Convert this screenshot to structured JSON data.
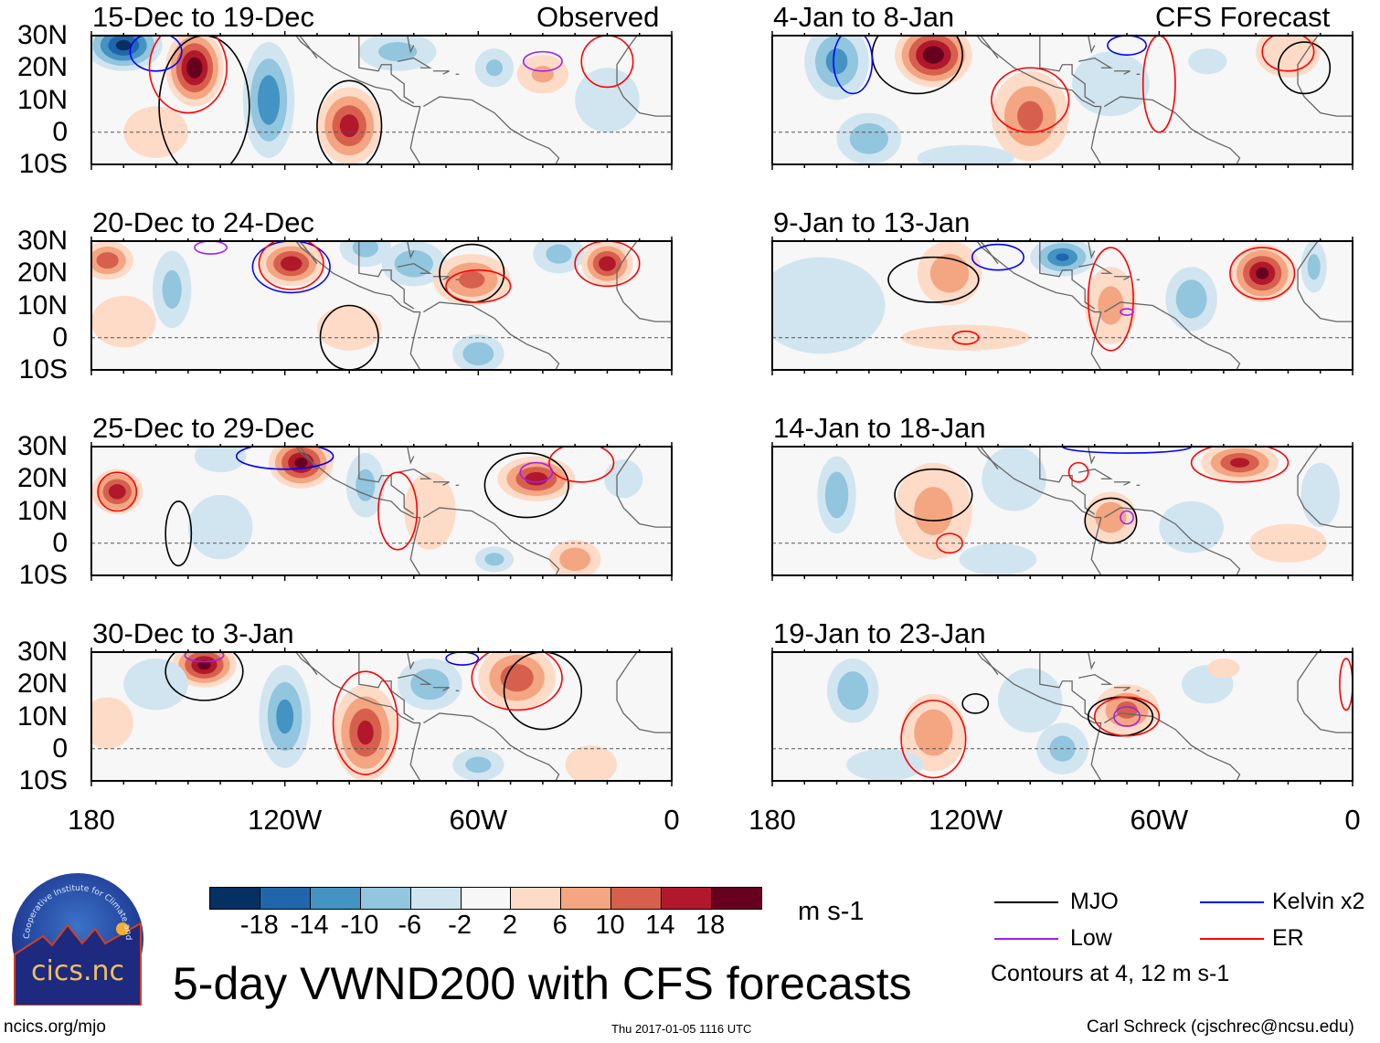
{
  "header": {
    "left_label": "Observed",
    "right_label": "CFS Forecast"
  },
  "axes": {
    "lat_labels": [
      "30N",
      "20N",
      "10N",
      "0",
      "10S"
    ],
    "lat_values": [
      30,
      20,
      10,
      0,
      -10
    ],
    "lon_labels": [
      "180",
      "120W",
      "60W",
      "0"
    ],
    "lon_values": [
      180,
      120,
      60,
      0
    ]
  },
  "chart_data": {
    "type": "heatmap",
    "title": "5-day VWND200 with CFS forecasts",
    "units": "m s-1",
    "field_note": "approximate anomaly features: lon in degrees W, lat in degrees N, extent in degrees, peak value in m s-1",
    "panels": [
      {
        "title": "15-Dec to 19-Dec",
        "column": "left",
        "row": 0,
        "features": [
          [
            170,
            27,
            12,
            8,
            -20
          ],
          [
            148,
            20,
            9,
            12,
            22
          ],
          [
            125,
            10,
            8,
            18,
            -14
          ],
          [
            100,
            2,
            10,
            12,
            17
          ],
          [
            85,
            25,
            12,
            6,
            -8
          ],
          [
            55,
            20,
            6,
            6,
            -7
          ],
          [
            40,
            18,
            8,
            6,
            7
          ],
          [
            160,
            0,
            10,
            8,
            6
          ],
          [
            20,
            10,
            10,
            10,
            -5
          ]
        ],
        "contours": [
          [
            "mjo",
            145,
            8,
            14,
            22
          ],
          [
            "mjo",
            100,
            2,
            10,
            14
          ],
          [
            "kelvin",
            160,
            25,
            8,
            6
          ],
          [
            "er",
            150,
            20,
            12,
            14
          ],
          [
            "er",
            20,
            22,
            8,
            8
          ],
          [
            "low",
            40,
            22,
            6,
            3
          ]
        ]
      },
      {
        "title": "20-Dec to 24-Dec",
        "column": "left",
        "row": 1,
        "features": [
          [
            175,
            24,
            8,
            6,
            14
          ],
          [
            155,
            15,
            6,
            12,
            -8
          ],
          [
            118,
            23,
            10,
            7,
            18
          ],
          [
            95,
            28,
            8,
            6,
            -8
          ],
          [
            80,
            23,
            10,
            7,
            -10
          ],
          [
            62,
            18,
            12,
            8,
            12
          ],
          [
            35,
            26,
            8,
            6,
            -8
          ],
          [
            20,
            23,
            8,
            7,
            18
          ],
          [
            100,
            3,
            10,
            7,
            5
          ],
          [
            60,
            -5,
            8,
            6,
            -10
          ],
          [
            170,
            5,
            10,
            8,
            5
          ]
        ],
        "contours": [
          [
            "mjo",
            62,
            20,
            10,
            9
          ],
          [
            "mjo",
            100,
            0,
            9,
            10
          ],
          [
            "kelvin",
            118,
            22,
            12,
            8
          ],
          [
            "er",
            118,
            23,
            10,
            8
          ],
          [
            "er",
            60,
            16,
            10,
            5
          ],
          [
            "er",
            20,
            23,
            10,
            7
          ],
          [
            "low",
            143,
            28,
            5,
            2
          ]
        ]
      },
      {
        "title": "25-Dec to 29-Dec",
        "column": "left",
        "row": 2,
        "features": [
          [
            172,
            16,
            8,
            7,
            18
          ],
          [
            115,
            25,
            10,
            8,
            20
          ],
          [
            140,
            27,
            8,
            5,
            -6
          ],
          [
            95,
            18,
            6,
            10,
            -8
          ],
          [
            75,
            10,
            8,
            12,
            5
          ],
          [
            42,
            20,
            12,
            7,
            17
          ],
          [
            140,
            5,
            10,
            10,
            -5
          ],
          [
            30,
            -5,
            8,
            6,
            10
          ],
          [
            55,
            -5,
            6,
            4,
            -8
          ],
          [
            15,
            20,
            6,
            6,
            -6
          ]
        ],
        "contours": [
          [
            "mjo",
            45,
            18,
            13,
            10
          ],
          [
            "mjo",
            153,
            3,
            4,
            10
          ],
          [
            "kelvin",
            120,
            27,
            15,
            4
          ],
          [
            "er",
            172,
            16,
            6,
            6
          ],
          [
            "er",
            28,
            25,
            10,
            6
          ],
          [
            "low",
            42,
            22,
            5,
            3
          ],
          [
            "er",
            85,
            10,
            6,
            12
          ]
        ]
      },
      {
        "title": "30-Dec to 3-Jan",
        "column": "left",
        "row": 3,
        "features": [
          [
            145,
            26,
            10,
            7,
            20
          ],
          [
            160,
            20,
            10,
            8,
            -6
          ],
          [
            120,
            10,
            8,
            16,
            -12
          ],
          [
            95,
            5,
            10,
            15,
            16
          ],
          [
            75,
            20,
            10,
            8,
            -10
          ],
          [
            48,
            22,
            12,
            10,
            14
          ],
          [
            60,
            -5,
            8,
            5,
            -8
          ],
          [
            175,
            8,
            8,
            8,
            5
          ],
          [
            25,
            -5,
            8,
            6,
            6
          ]
        ],
        "contours": [
          [
            "mjo",
            145,
            24,
            12,
            9
          ],
          [
            "mjo",
            40,
            18,
            12,
            12
          ],
          [
            "er",
            95,
            8,
            10,
            16
          ],
          [
            "er",
            48,
            22,
            14,
            10
          ],
          [
            "low",
            145,
            29,
            6,
            2
          ],
          [
            "kelvin",
            65,
            28,
            5,
            2
          ]
        ]
      },
      {
        "title": "4-Jan to 8-Jan",
        "column": "right",
        "row": 0,
        "features": [
          [
            160,
            22,
            10,
            12,
            -12
          ],
          [
            130,
            24,
            12,
            10,
            22
          ],
          [
            150,
            -2,
            10,
            8,
            -10
          ],
          [
            100,
            5,
            12,
            14,
            12
          ],
          [
            75,
            15,
            12,
            10,
            -6
          ],
          [
            45,
            22,
            6,
            4,
            -6
          ],
          [
            120,
            -8,
            15,
            4,
            -6
          ],
          [
            20,
            25,
            10,
            8,
            6
          ]
        ],
        "contours": [
          [
            "mjo",
            135,
            24,
            14,
            12
          ],
          [
            "mjo",
            15,
            20,
            8,
            8
          ],
          [
            "kelvin",
            155,
            22,
            6,
            10
          ],
          [
            "kelvin",
            70,
            27,
            6,
            3
          ],
          [
            "er",
            100,
            10,
            12,
            10
          ],
          [
            "er",
            20,
            25,
            8,
            6
          ],
          [
            "er",
            60,
            15,
            5,
            15
          ]
        ]
      },
      {
        "title": "9-Jan to 13-Jan",
        "column": "right",
        "row": 1,
        "features": [
          [
            165,
            10,
            20,
            15,
            -5
          ],
          [
            125,
            20,
            10,
            10,
            10
          ],
          [
            90,
            25,
            10,
            6,
            -15
          ],
          [
            75,
            10,
            8,
            12,
            8
          ],
          [
            50,
            12,
            8,
            10,
            -10
          ],
          [
            28,
            20,
            10,
            9,
            20
          ],
          [
            12,
            22,
            4,
            8,
            -8
          ],
          [
            120,
            0,
            20,
            4,
            4
          ]
        ],
        "contours": [
          [
            "mjo",
            130,
            18,
            14,
            7
          ],
          [
            "er",
            75,
            12,
            7,
            16
          ],
          [
            "er",
            28,
            20,
            10,
            8
          ],
          [
            "er",
            120,
            0,
            4,
            2
          ],
          [
            "kelvin",
            110,
            25,
            8,
            4
          ],
          [
            "low",
            70,
            8,
            2,
            1
          ]
        ]
      },
      {
        "title": "14-Jan to 18-Jan",
        "column": "right",
        "row": 2,
        "features": [
          [
            160,
            15,
            6,
            12,
            -10
          ],
          [
            130,
            10,
            12,
            15,
            8
          ],
          [
            105,
            20,
            10,
            10,
            -6
          ],
          [
            75,
            8,
            8,
            8,
            10
          ],
          [
            35,
            25,
            12,
            6,
            16
          ],
          [
            10,
            15,
            6,
            10,
            -5
          ],
          [
            50,
            5,
            10,
            8,
            -6
          ],
          [
            20,
            0,
            12,
            6,
            5
          ],
          [
            110,
            -5,
            12,
            5,
            -4
          ]
        ],
        "contours": [
          [
            "mjo",
            130,
            15,
            12,
            8
          ],
          [
            "mjo",
            75,
            7,
            8,
            7
          ],
          [
            "er",
            125,
            0,
            4,
            3
          ],
          [
            "er",
            35,
            25,
            15,
            6
          ],
          [
            "er",
            85,
            22,
            3,
            3
          ],
          [
            "kelvin",
            70,
            30,
            20,
            2
          ],
          [
            "low",
            70,
            8,
            2,
            2
          ]
        ]
      },
      {
        "title": "19-Jan to 23-Jan",
        "column": "right",
        "row": 3,
        "features": [
          [
            155,
            18,
            8,
            10,
            -10
          ],
          [
            130,
            5,
            10,
            12,
            10
          ],
          [
            100,
            15,
            10,
            10,
            -6
          ],
          [
            90,
            0,
            8,
            8,
            -8
          ],
          [
            70,
            12,
            10,
            8,
            12
          ],
          [
            45,
            20,
            8,
            6,
            -5
          ],
          [
            40,
            25,
            5,
            3,
            5
          ],
          [
            145,
            -5,
            12,
            5,
            -4
          ]
        ],
        "contours": [
          [
            "mjo",
            72,
            10,
            10,
            6
          ],
          [
            "mjo",
            117,
            14,
            4,
            3
          ],
          [
            "er",
            130,
            3,
            10,
            12
          ],
          [
            "er",
            70,
            10,
            10,
            6
          ],
          [
            "low",
            70,
            10,
            4,
            3
          ],
          [
            "er",
            2,
            20,
            2,
            8
          ]
        ]
      }
    ],
    "colorbar": {
      "levels": [
        "-18",
        "-14",
        "-10",
        "-6",
        "-2",
        "2",
        "6",
        "10",
        "14",
        "18"
      ],
      "colors": [
        "#053061",
        "#2166ac",
        "#4393c3",
        "#92c5de",
        "#d1e5f0",
        "#f7f7f7",
        "#fddbc7",
        "#f4a582",
        "#d6604d",
        "#b2182b",
        "#67001f"
      ]
    },
    "legend": [
      {
        "key": "mjo",
        "label": "MJO",
        "color": "#000000"
      },
      {
        "key": "kelvin",
        "label": "Kelvin x2",
        "color": "#0000ff"
      },
      {
        "key": "low",
        "label": "Low",
        "color": "#a020f0"
      },
      {
        "key": "er",
        "label": "ER",
        "color": "#ff0000"
      }
    ],
    "contour_note": "Contours at 4, 12 m s-1"
  },
  "footer": {
    "logo_text": "cics.nc",
    "logo_ring_text": "Cooperative Institute for Climate and Satellites",
    "url": "ncics.org/mjo",
    "timestamp": "Thu 2017-01-05 1116 UTC",
    "author": "Carl Schreck (cjschrec@ncsu.edu)"
  }
}
